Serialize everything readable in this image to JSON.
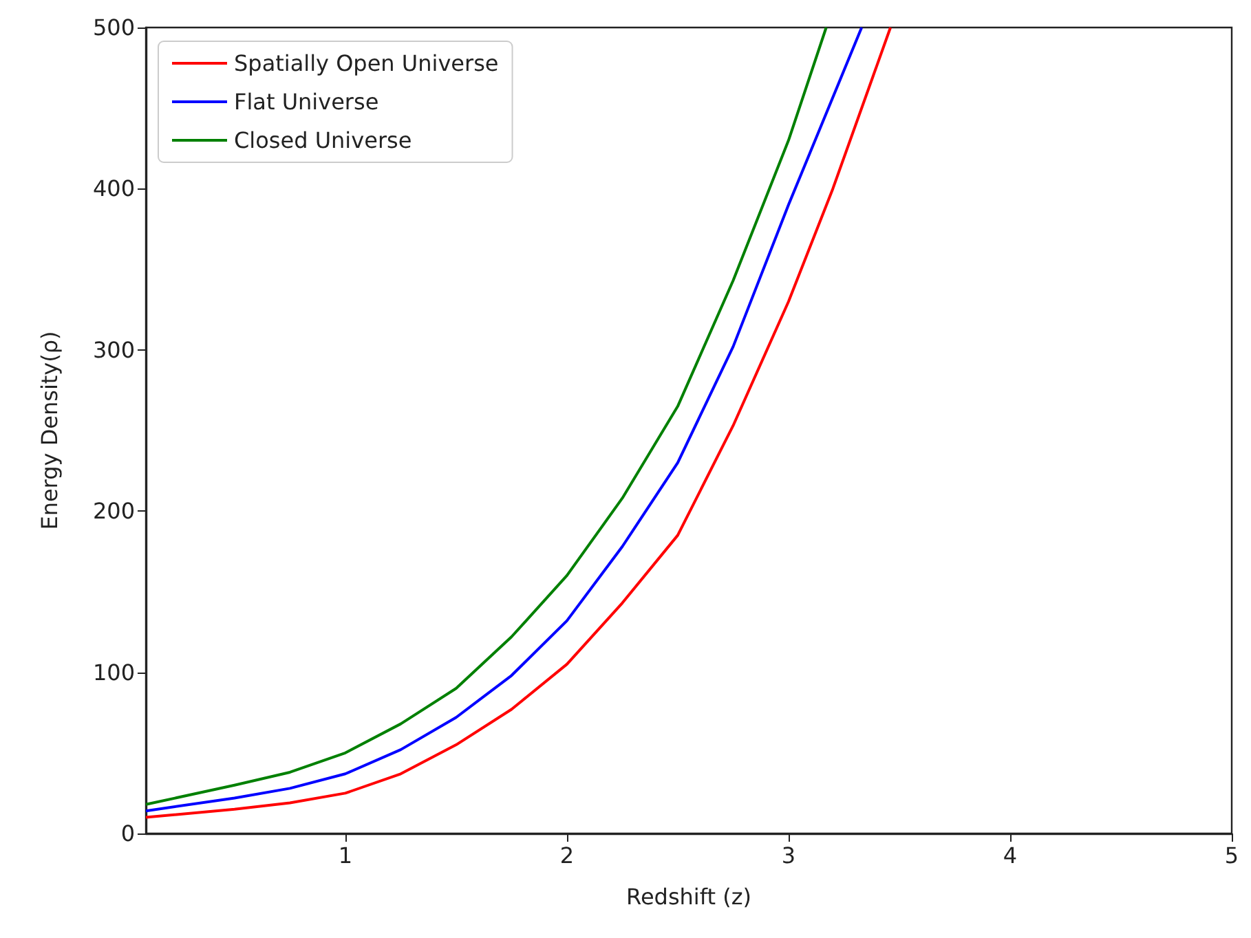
{
  "chart_data": {
    "type": "line",
    "xlabel": "Redshift (z)",
    "ylabel": "Energy Density(ρ)",
    "xlim": [
      0.1,
      5
    ],
    "xticks": [
      1,
      2,
      3,
      4,
      5
    ],
    "ylim": [
      0,
      500
    ],
    "yticks": [
      0,
      100,
      200,
      300,
      400,
      500
    ],
    "grid": false,
    "legend": "top left",
    "marker": "none",
    "line_style": "solid",
    "series": [
      {
        "name": "Spatially Open Universe",
        "color": "#ff0000",
        "x": [
          0.1,
          0.5,
          0.75,
          1.0,
          1.25,
          1.5,
          1.75,
          2.0,
          2.25,
          2.5,
          2.75,
          3.0,
          3.2,
          3.46
        ],
        "values": [
          10,
          15,
          19,
          25,
          37,
          55,
          77,
          105,
          143,
          185,
          253,
          330,
          400,
          500
        ]
      },
      {
        "name": "Flat Universe",
        "color": "#0000ff",
        "x": [
          0.1,
          0.5,
          0.75,
          1.0,
          1.25,
          1.5,
          1.75,
          2.0,
          2.25,
          2.5,
          2.75,
          3.0,
          3.33
        ],
        "values": [
          14,
          22,
          28,
          37,
          52,
          72,
          98,
          132,
          178,
          230,
          302,
          390,
          500
        ]
      },
      {
        "name": "Closed Universe",
        "color": "#008000",
        "x": [
          0.1,
          0.5,
          0.75,
          1.0,
          1.25,
          1.5,
          1.75,
          2.0,
          2.25,
          2.5,
          2.75,
          3.0,
          3.17
        ],
        "values": [
          18,
          30,
          38,
          50,
          68,
          90,
          122,
          160,
          208,
          265,
          343,
          430,
          500
        ]
      }
    ]
  }
}
